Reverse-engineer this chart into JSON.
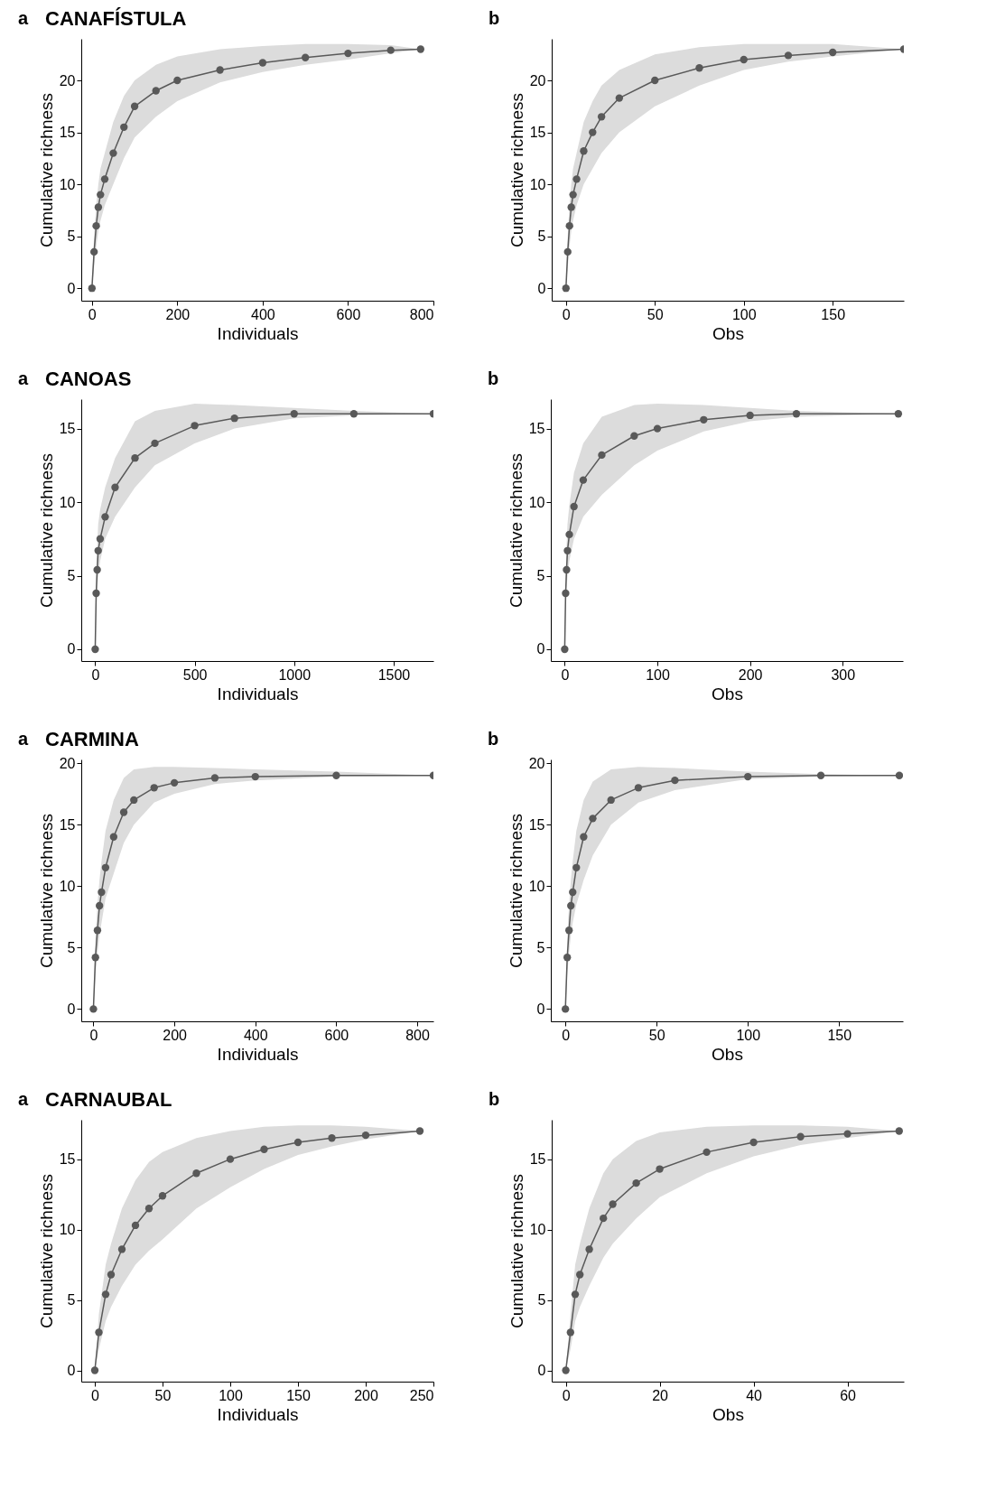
{
  "chart_data": [
    {
      "type": "line",
      "title": "CANAFÍSTULA",
      "annotations": [
        "a"
      ],
      "xlabel": "Individuals",
      "ylabel": "Cumulative richness",
      "marker": "circle",
      "grid": false,
      "xlim": [
        -25,
        800
      ],
      "ylim": [
        -1.2,
        24
      ],
      "xticks": [
        0,
        200,
        400,
        600,
        800
      ],
      "yticks": [
        0,
        5,
        10,
        15,
        20
      ],
      "x": [
        0,
        5,
        10,
        15,
        20,
        30,
        50,
        75,
        100,
        150,
        200,
        300,
        400,
        500,
        600,
        700,
        770
      ],
      "series": [
        {
          "color": "#595959",
          "values": [
            0,
            3.5,
            6,
            7.8,
            9,
            10.5,
            13,
            15.5,
            17.5,
            19,
            20,
            21,
            21.7,
            22.2,
            22.6,
            22.9,
            23
          ],
          "lower": [
            0,
            2,
            4,
            5.5,
            6.5,
            8,
            10,
            12.5,
            14.5,
            16.5,
            18,
            19.8,
            20.8,
            21.5,
            22,
            22.6,
            23
          ],
          "upper": [
            0,
            5,
            8,
            10,
            11.5,
            13,
            16,
            18.5,
            20,
            21.5,
            22.3,
            23,
            23.3,
            23.5,
            23.5,
            23.4,
            23
          ]
        }
      ]
    },
    {
      "type": "line",
      "annotations": [
        "b"
      ],
      "xlabel": "Obs",
      "ylabel": "Cumulative richness",
      "marker": "circle",
      "grid": false,
      "xlim": [
        -8,
        190
      ],
      "ylim": [
        -1.2,
        24
      ],
      "xticks": [
        0,
        50,
        100,
        150
      ],
      "yticks": [
        0,
        5,
        10,
        15,
        20
      ],
      "x": [
        0,
        1,
        2,
        3,
        4,
        6,
        10,
        15,
        20,
        30,
        50,
        75,
        100,
        125,
        150,
        190
      ],
      "series": [
        {
          "color": "#595959",
          "values": [
            0,
            3.5,
            6,
            7.8,
            9,
            10.5,
            13.2,
            15,
            16.5,
            18.3,
            20,
            21.2,
            22,
            22.4,
            22.7,
            23
          ],
          "lower": [
            0,
            2,
            4,
            5.5,
            6.5,
            8,
            10,
            11.5,
            13,
            15,
            17.5,
            19.5,
            21,
            21.8,
            22.3,
            23
          ],
          "upper": [
            0,
            5,
            8,
            10,
            11.5,
            13,
            16,
            18,
            19.5,
            21,
            22.5,
            23.2,
            23.5,
            23.5,
            23.5,
            23
          ]
        }
      ]
    },
    {
      "type": "line",
      "title": "CANOAS",
      "annotations": [
        "a"
      ],
      "xlabel": "Individuals",
      "ylabel": "Cumulative richness",
      "marker": "circle",
      "grid": false,
      "xlim": [
        -70,
        1700
      ],
      "ylim": [
        -0.8,
        17
      ],
      "xticks": [
        0,
        500,
        {
          "value": 1000,
          "label": "1000"
        },
        {
          "value": 1500,
          "label": "1500"
        }
      ],
      "yticks": [
        0,
        5,
        10,
        15
      ],
      "x": [
        0,
        5,
        10,
        15,
        25,
        50,
        100,
        200,
        300,
        500,
        700,
        1000,
        1300,
        1700
      ],
      "series": [
        {
          "color": "#595959",
          "values": [
            0,
            3.8,
            5.4,
            6.7,
            7.5,
            9,
            11,
            13,
            14,
            15.2,
            15.7,
            16,
            16,
            16
          ],
          "lower": [
            0,
            2.5,
            4,
            5,
            6,
            7.5,
            9,
            11,
            12.5,
            14,
            15,
            15.7,
            15.9,
            16
          ],
          "upper": [
            0,
            5,
            7,
            8.5,
            9.5,
            11,
            13,
            15.5,
            16.2,
            16.7,
            16.6,
            16.4,
            16.2,
            16
          ]
        }
      ]
    },
    {
      "type": "line",
      "annotations": [
        "b"
      ],
      "xlabel": "Obs",
      "ylabel": "Cumulative richness",
      "marker": "circle",
      "grid": false,
      "xlim": [
        -15,
        365
      ],
      "ylim": [
        -0.8,
        17
      ],
      "xticks": [
        0,
        100,
        200,
        300
      ],
      "yticks": [
        0,
        5,
        10,
        15
      ],
      "x": [
        0,
        1,
        2,
        3,
        5,
        10,
        20,
        40,
        75,
        100,
        150,
        200,
        250,
        360
      ],
      "series": [
        {
          "color": "#595959",
          "values": [
            0,
            3.8,
            5.4,
            6.7,
            7.8,
            9.7,
            11.5,
            13.2,
            14.5,
            15,
            15.6,
            15.9,
            16,
            16
          ],
          "lower": [
            0,
            2.5,
            4,
            5,
            6,
            7.5,
            9,
            10.5,
            12.5,
            13.5,
            14.8,
            15.5,
            15.8,
            16
          ],
          "upper": [
            0,
            5,
            7,
            8.5,
            9.8,
            12,
            14,
            15.8,
            16.6,
            16.7,
            16.6,
            16.4,
            16.2,
            16
          ]
        }
      ]
    },
    {
      "type": "line",
      "title": "CARMINA",
      "annotations": [
        "a"
      ],
      "xlabel": "Individuals",
      "ylabel": "Cumulative richness",
      "marker": "circle",
      "grid": false,
      "xlim": [
        -30,
        840
      ],
      "ylim": [
        -1,
        20.3
      ],
      "xticks": [
        0,
        200,
        400,
        600,
        800
      ],
      "yticks": [
        0,
        5,
        10,
        15,
        20
      ],
      "x": [
        0,
        5,
        10,
        15,
        20,
        30,
        50,
        75,
        100,
        150,
        200,
        300,
        400,
        600,
        840
      ],
      "series": [
        {
          "color": "#595959",
          "values": [
            0,
            4.2,
            6.4,
            8.4,
            9.5,
            11.5,
            14,
            16,
            17,
            18,
            18.4,
            18.8,
            18.9,
            19,
            19
          ],
          "lower": [
            0,
            2.8,
            4.5,
            6,
            7,
            9,
            11,
            13.5,
            15,
            16.8,
            17.5,
            18.3,
            18.6,
            18.9,
            19
          ],
          "upper": [
            0,
            5.8,
            8.5,
            10.5,
            12,
            14.5,
            17,
            18.8,
            19.5,
            19.7,
            19.7,
            19.6,
            19.5,
            19.3,
            19
          ]
        }
      ]
    },
    {
      "type": "line",
      "annotations": [
        "b"
      ],
      "xlabel": "Obs",
      "ylabel": "Cumulative richness",
      "marker": "circle",
      "grid": false,
      "xlim": [
        -8,
        185
      ],
      "ylim": [
        -1,
        20.3
      ],
      "xticks": [
        0,
        50,
        100,
        150
      ],
      "yticks": [
        0,
        5,
        10,
        15,
        20
      ],
      "x": [
        0,
        1,
        2,
        3,
        4,
        6,
        10,
        15,
        25,
        40,
        60,
        100,
        140,
        183
      ],
      "series": [
        {
          "color": "#595959",
          "values": [
            0,
            4.2,
            6.4,
            8.4,
            9.5,
            11.5,
            14,
            15.5,
            17,
            18,
            18.6,
            18.9,
            19,
            19
          ],
          "lower": [
            0,
            2.8,
            4.5,
            6,
            7,
            8.5,
            10.5,
            12.5,
            15,
            16.8,
            17.8,
            18.7,
            18.9,
            19
          ],
          "upper": [
            0,
            5.8,
            8.5,
            10.5,
            12,
            14.5,
            17,
            18.5,
            19.5,
            19.7,
            19.6,
            19.3,
            19.1,
            19
          ]
        }
      ]
    },
    {
      "type": "line",
      "title": "CARNAUBAL",
      "annotations": [
        "a"
      ],
      "xlabel": "Individuals",
      "ylabel": "Cumulative richness",
      "marker": "circle",
      "grid": false,
      "xlim": [
        -10,
        250
      ],
      "ylim": [
        -0.8,
        17.8
      ],
      "xticks": [
        0,
        50,
        100,
        150,
        200,
        250
      ],
      "yticks": [
        0,
        5,
        10,
        15
      ],
      "x": [
        0,
        3,
        8,
        12,
        20,
        30,
        40,
        50,
        75,
        100,
        125,
        150,
        175,
        200,
        240
      ],
      "series": [
        {
          "color": "#595959",
          "values": [
            0,
            2.7,
            5.4,
            6.8,
            8.6,
            10.3,
            11.5,
            12.4,
            14,
            15,
            15.7,
            16.2,
            16.5,
            16.7,
            17
          ],
          "lower": [
            0,
            1.5,
            3.5,
            4.5,
            6,
            7.5,
            8.5,
            9.3,
            11.5,
            13,
            14.3,
            15.3,
            15.9,
            16.4,
            17
          ],
          "upper": [
            0,
            4,
            7.5,
            9,
            11.5,
            13.5,
            14.8,
            15.5,
            16.5,
            17,
            17.3,
            17.4,
            17.4,
            17.3,
            17
          ]
        }
      ]
    },
    {
      "type": "line",
      "annotations": [
        "b"
      ],
      "xlabel": "Obs",
      "ylabel": "Cumulative richness",
      "marker": "circle",
      "grid": false,
      "xlim": [
        -3,
        72
      ],
      "ylim": [
        -0.8,
        17.8
      ],
      "xticks": [
        0,
        20,
        40,
        60
      ],
      "yticks": [
        0,
        5,
        10,
        15
      ],
      "x": [
        0,
        1,
        2,
        3,
        5,
        8,
        10,
        15,
        20,
        30,
        40,
        50,
        60,
        71
      ],
      "series": [
        {
          "color": "#595959",
          "values": [
            0,
            2.7,
            5.4,
            6.8,
            8.6,
            10.8,
            11.8,
            13.3,
            14.3,
            15.5,
            16.2,
            16.6,
            16.8,
            17
          ],
          "lower": [
            0,
            1.5,
            3.5,
            4.5,
            6,
            8,
            9,
            10.8,
            12.3,
            14,
            15.2,
            16,
            16.5,
            17
          ],
          "upper": [
            0,
            4,
            7.5,
            9,
            11.5,
            14,
            15,
            16.3,
            16.9,
            17.3,
            17.4,
            17.4,
            17.3,
            17
          ]
        }
      ]
    }
  ]
}
